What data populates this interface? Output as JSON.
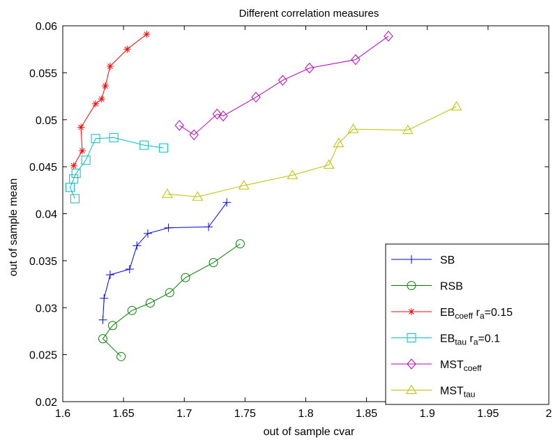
{
  "chart_data": {
    "type": "line",
    "title": "Different correlation measures",
    "xlabel": "out of sample cvar",
    "ylabel": "out of sample mean",
    "xlim": [
      1.6,
      2.0
    ],
    "ylim": [
      0.02,
      0.06
    ],
    "xticks": [
      1.6,
      1.65,
      1.7,
      1.75,
      1.8,
      1.85,
      1.9,
      1.95,
      2.0
    ],
    "xtick_labels": [
      "1.6",
      "1.65",
      "1.7",
      "1.75",
      "1.8",
      "1.85",
      "1.9",
      "1.95",
      "2"
    ],
    "yticks": [
      0.02,
      0.025,
      0.03,
      0.035,
      0.04,
      0.045,
      0.05,
      0.055,
      0.06
    ],
    "ytick_labels": [
      "0.02",
      "0.025",
      "0.03",
      "0.035",
      "0.04",
      "0.045",
      "0.05",
      "0.055",
      "0.06"
    ],
    "grid": false,
    "legend_position": "bottom-right",
    "series": [
      {
        "legend_main": "SB",
        "legend_sub": "",
        "legend_suffix_main": "",
        "legend_suffix_sub": "",
        "legend_suffix_tail": "",
        "color": "#0000ff",
        "marker": "plus",
        "points": [
          [
            1.633,
            0.0287
          ],
          [
            1.634,
            0.031
          ],
          [
            1.639,
            0.0335
          ],
          [
            1.655,
            0.0341
          ],
          [
            1.661,
            0.0366
          ],
          [
            1.67,
            0.0379
          ],
          [
            1.687,
            0.0385
          ],
          [
            1.72,
            0.0386
          ],
          [
            1.735,
            0.0412
          ]
        ]
      },
      {
        "legend_main": "RSB",
        "legend_sub": "",
        "legend_suffix_main": "",
        "legend_suffix_sub": "",
        "legend_suffix_tail": "",
        "color": "#008000",
        "marker": "circle",
        "points": [
          [
            1.648,
            0.0248
          ],
          [
            1.633,
            0.0267
          ],
          [
            1.641,
            0.0281
          ],
          [
            1.657,
            0.0297
          ],
          [
            1.672,
            0.0305
          ],
          [
            1.688,
            0.0316
          ],
          [
            1.701,
            0.0332
          ],
          [
            1.724,
            0.0348
          ],
          [
            1.746,
            0.0368
          ]
        ]
      },
      {
        "legend_main": "EB",
        "legend_sub": "coeff",
        "legend_suffix_main": " r",
        "legend_suffix_sub": "a",
        "legend_suffix_tail": "=0.15",
        "color": "#ff0000",
        "marker": "star",
        "points": [
          [
            1.609,
            0.0451
          ],
          [
            1.616,
            0.0467
          ],
          [
            1.615,
            0.0492
          ],
          [
            1.627,
            0.0517
          ],
          [
            1.632,
            0.0522
          ],
          [
            1.635,
            0.0536
          ],
          [
            1.639,
            0.0557
          ],
          [
            1.653,
            0.0575
          ],
          [
            1.669,
            0.0591
          ]
        ]
      },
      {
        "legend_main": "EB",
        "legend_sub": "tau",
        "legend_suffix_main": " r",
        "legend_suffix_sub": "a",
        "legend_suffix_tail": "=0.1",
        "color": "#00bfbf",
        "marker": "square",
        "points": [
          [
            1.61,
            0.0416
          ],
          [
            1.606,
            0.0428
          ],
          [
            1.609,
            0.0437
          ],
          [
            1.611,
            0.0443
          ],
          [
            1.619,
            0.0457
          ],
          [
            1.627,
            0.048
          ],
          [
            1.642,
            0.0481
          ],
          [
            1.667,
            0.0473
          ],
          [
            1.683,
            0.047
          ]
        ]
      },
      {
        "legend_main": "MST",
        "legend_sub": "coeff",
        "legend_suffix_main": "",
        "legend_suffix_sub": "",
        "legend_suffix_tail": "",
        "color": "#bf00bf",
        "marker": "diamond",
        "points": [
          [
            1.696,
            0.0494
          ],
          [
            1.708,
            0.0484
          ],
          [
            1.727,
            0.0506
          ],
          [
            1.732,
            0.0504
          ],
          [
            1.759,
            0.0524
          ],
          [
            1.781,
            0.0542
          ],
          [
            1.803,
            0.0555
          ],
          [
            1.841,
            0.0564
          ],
          [
            1.868,
            0.0589
          ]
        ]
      },
      {
        "legend_main": "MST",
        "legend_sub": "tau",
        "legend_suffix_main": "",
        "legend_suffix_sub": "",
        "legend_suffix_tail": "",
        "color": "#bfbf00",
        "marker": "triangle",
        "points": [
          [
            1.686,
            0.0421
          ],
          [
            1.711,
            0.0418
          ],
          [
            1.749,
            0.043
          ],
          [
            1.789,
            0.0441
          ],
          [
            1.819,
            0.0452
          ],
          [
            1.827,
            0.0475
          ],
          [
            1.839,
            0.049
          ],
          [
            1.884,
            0.0489
          ],
          [
            1.924,
            0.0514
          ]
        ]
      }
    ]
  }
}
